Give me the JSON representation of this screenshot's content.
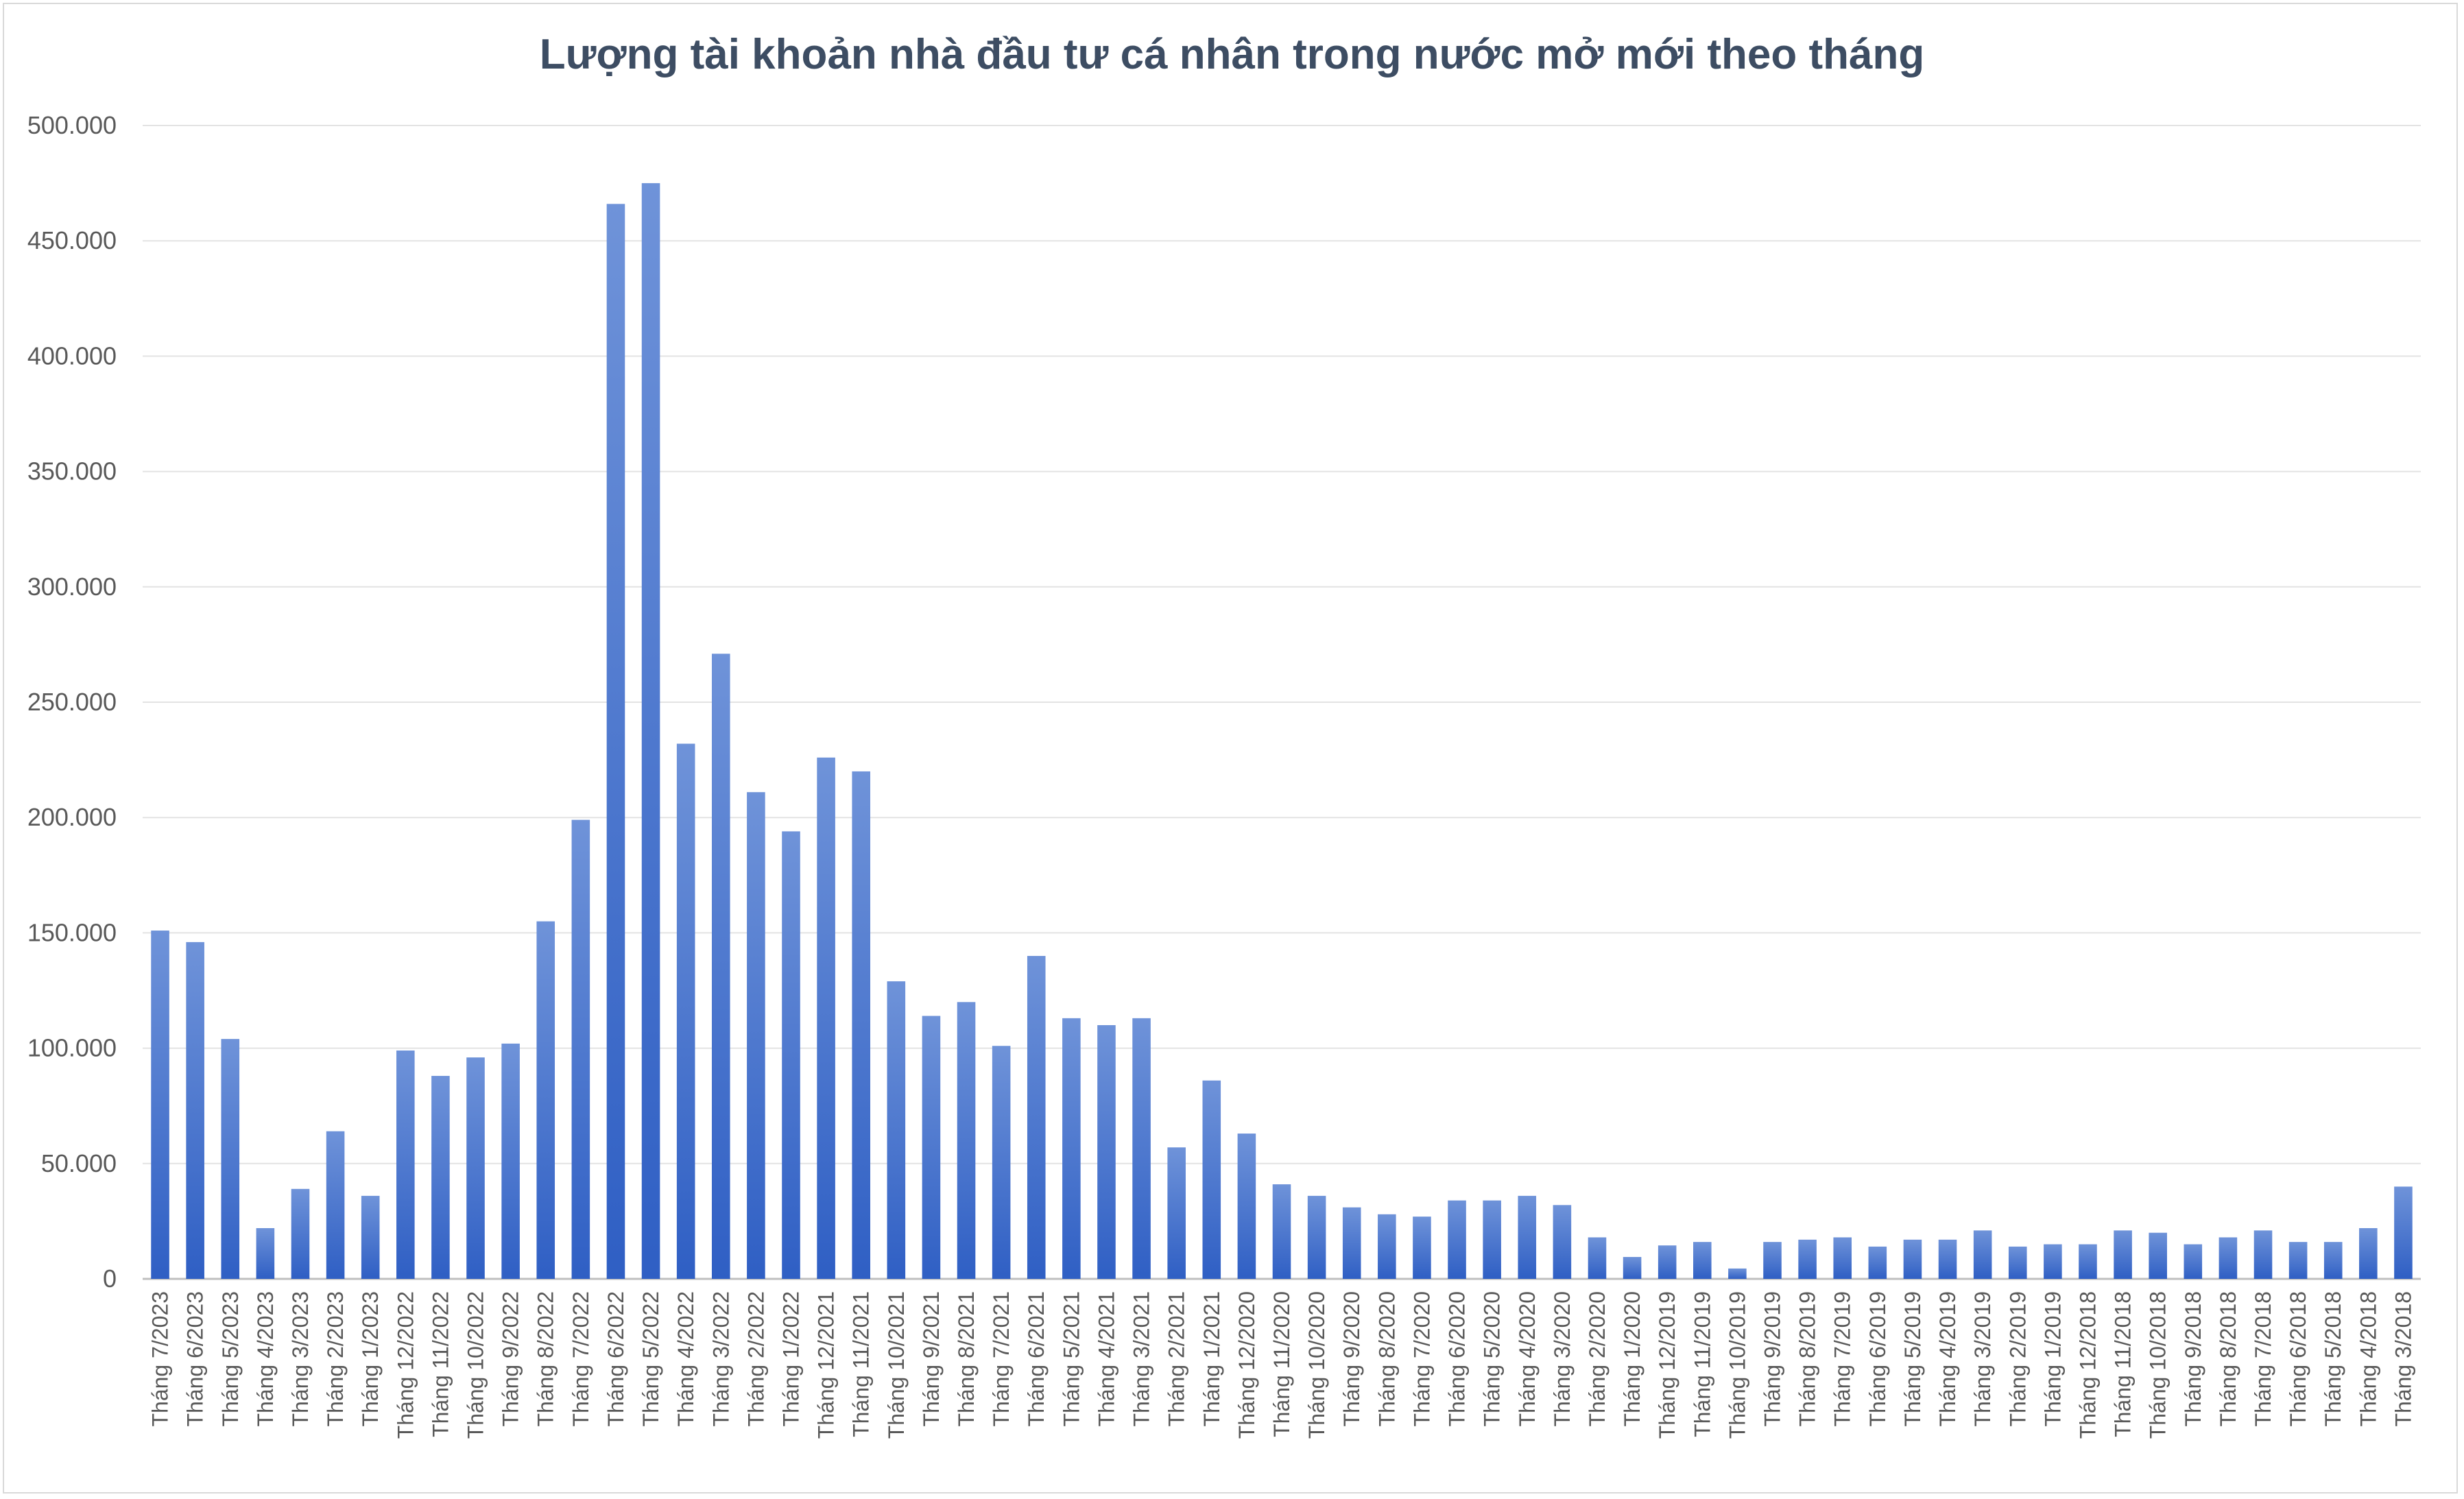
{
  "chart_data": {
    "type": "bar",
    "title": "Lượng tài khoản nhà đầu tư cá nhân trong nước mở mới theo tháng",
    "xlabel": "",
    "ylabel": "",
    "ylim": [
      0,
      500000
    ],
    "yticks": [
      "0",
      "50.000",
      "100.000",
      "150.000",
      "200.000",
      "250.000",
      "300.000",
      "350.000",
      "400.000",
      "450.000",
      "500.000"
    ],
    "grid": true,
    "legend": "none",
    "bar_color": "#3a6fd0",
    "categories": [
      "Tháng 7/2023",
      "Tháng 6/2023",
      "Tháng 5/2023",
      "Tháng 4/2023",
      "Tháng 3/2023",
      "Tháng 2/2023",
      "Tháng 1/2023",
      "Tháng 12/2022",
      "Tháng 11/2022",
      "Tháng 10/2022",
      "Tháng 9/2022",
      "Tháng 8/2022",
      "Tháng 7/2022",
      "Tháng 6/2022",
      "Tháng 5/2022",
      "Tháng 4/2022",
      "Tháng 3/2022",
      "Tháng 2/2022",
      "Tháng 1/2022",
      "Tháng 12/2021",
      "Tháng 11/2021",
      "Tháng 10/2021",
      "Tháng 9/2021",
      "Tháng 8/2021",
      "Tháng 7/2021",
      "Tháng 6/2021",
      "Tháng 5/2021",
      "Tháng 4/2021",
      "Tháng 3/2021",
      "Tháng 2/2021",
      "Tháng 1/2021",
      "Tháng 12/2020",
      "Tháng 11/2020",
      "Tháng 10/2020",
      "Tháng 9/2020",
      "Tháng 8/2020",
      "Tháng 7/2020",
      "Tháng 6/2020",
      "Tháng 5/2020",
      "Tháng 4/2020",
      "Tháng 3/2020",
      "Tháng 2/2020",
      "Tháng 1/2020",
      "Tháng 12/2019",
      "Tháng 11/2019",
      "Tháng 10/2019",
      "Tháng 9/2019",
      "Tháng 8/2019",
      "Tháng 7/2019",
      "Tháng 6/2019",
      "Tháng 5/2019",
      "Tháng 4/2019",
      "Tháng 3/2019",
      "Tháng 2/2019",
      "Tháng 1/2019",
      "Tháng 12/2018",
      "Tháng 11/2018",
      "Tháng 10/2018",
      "Tháng 9/2018",
      "Tháng 8/2018",
      "Tháng 7/2018",
      "Tháng 6/2018",
      "Tháng 5/2018",
      "Tháng 4/2018",
      "Tháng 3/2018"
    ],
    "values": [
      151000,
      146000,
      104000,
      22000,
      39000,
      64000,
      36000,
      99000,
      88000,
      96000,
      102000,
      155000,
      199000,
      466000,
      475000,
      232000,
      271000,
      211000,
      194000,
      226000,
      220000,
      129000,
      114000,
      120000,
      101000,
      140000,
      113000,
      110000,
      113000,
      57000,
      86000,
      63000,
      41000,
      36000,
      31000,
      28000,
      27000,
      34000,
      34000,
      36000,
      32000,
      18000,
      9500,
      14500,
      16000,
      4500,
      16000,
      17000,
      18000,
      14000,
      17000,
      17000,
      21000,
      14000,
      15000,
      15000,
      21000,
      20000,
      15000,
      18000,
      21000,
      16000,
      16000,
      22000,
      40000
    ]
  }
}
